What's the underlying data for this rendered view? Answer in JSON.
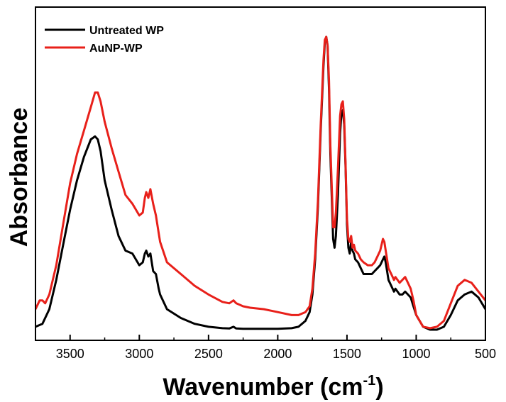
{
  "chart_data": {
    "type": "line",
    "title": "",
    "xlabel": "Wavenumber (cm",
    "xlabel_sup": "-1",
    "xlabel_close": ")",
    "ylabel": "Absorbance",
    "xlim": [
      3750,
      500
    ],
    "x_reversed": true,
    "ylim": [
      0,
      1
    ],
    "y_ticks_shown": false,
    "x_ticks": [
      3500,
      3000,
      2500,
      2000,
      1500,
      1000,
      500
    ],
    "x_tick_labels": [
      "3500",
      "3000",
      "2500",
      "2000",
      "1500",
      "1000",
      "500"
    ],
    "legend_position": "top-left",
    "series": [
      {
        "name": "Untreated WP",
        "color": "#000000",
        "x": [
          3750,
          3700,
          3650,
          3600,
          3550,
          3500,
          3450,
          3400,
          3350,
          3320,
          3300,
          3280,
          3250,
          3200,
          3150,
          3100,
          3050,
          3000,
          2975,
          2960,
          2950,
          2935,
          2920,
          2900,
          2880,
          2860,
          2850,
          2800,
          2700,
          2600,
          2500,
          2400,
          2350,
          2320,
          2300,
          2250,
          2200,
          2100,
          2000,
          1900,
          1850,
          1800,
          1770,
          1750,
          1730,
          1710,
          1690,
          1670,
          1660,
          1650,
          1640,
          1630,
          1620,
          1600,
          1590,
          1580,
          1565,
          1550,
          1540,
          1530,
          1520,
          1510,
          1500,
          1490,
          1480,
          1470,
          1460,
          1450,
          1440,
          1420,
          1400,
          1380,
          1350,
          1320,
          1300,
          1280,
          1260,
          1240,
          1230,
          1220,
          1200,
          1180,
          1160,
          1150,
          1120,
          1100,
          1080,
          1060,
          1040,
          1020,
          1000,
          950,
          900,
          850,
          800,
          750,
          700,
          650,
          600,
          550,
          500
        ],
        "y": [
          0.01,
          0.02,
          0.07,
          0.17,
          0.29,
          0.41,
          0.51,
          0.59,
          0.65,
          0.66,
          0.65,
          0.61,
          0.51,
          0.41,
          0.32,
          0.27,
          0.26,
          0.22,
          0.23,
          0.26,
          0.27,
          0.25,
          0.26,
          0.2,
          0.19,
          0.14,
          0.12,
          0.07,
          0.04,
          0.02,
          0.01,
          0.005,
          0.004,
          0.01,
          0.004,
          0.003,
          0.003,
          0.003,
          0.003,
          0.005,
          0.01,
          0.03,
          0.06,
          0.12,
          0.24,
          0.42,
          0.68,
          0.9,
          0.98,
          1.0,
          0.97,
          0.82,
          0.6,
          0.31,
          0.28,
          0.32,
          0.46,
          0.67,
          0.74,
          0.75,
          0.7,
          0.55,
          0.36,
          0.28,
          0.26,
          0.3,
          0.27,
          0.26,
          0.24,
          0.23,
          0.21,
          0.19,
          0.19,
          0.19,
          0.2,
          0.21,
          0.22,
          0.24,
          0.25,
          0.23,
          0.17,
          0.15,
          0.13,
          0.14,
          0.12,
          0.12,
          0.13,
          0.12,
          0.11,
          0.08,
          0.05,
          0.01,
          0.0,
          0.0,
          0.01,
          0.05,
          0.1,
          0.12,
          0.13,
          0.11,
          0.07
        ]
      },
      {
        "name": "AuNP-WP",
        "color": "#e8201a",
        "x": [
          3750,
          3720,
          3700,
          3680,
          3650,
          3600,
          3550,
          3500,
          3450,
          3400,
          3350,
          3320,
          3300,
          3280,
          3250,
          3200,
          3150,
          3100,
          3050,
          3000,
          2975,
          2960,
          2950,
          2935,
          2920,
          2900,
          2880,
          2860,
          2850,
          2800,
          2700,
          2600,
          2500,
          2400,
          2350,
          2320,
          2300,
          2250,
          2200,
          2100,
          2000,
          1900,
          1850,
          1800,
          1770,
          1750,
          1730,
          1710,
          1690,
          1670,
          1660,
          1650,
          1640,
          1630,
          1620,
          1600,
          1590,
          1580,
          1565,
          1550,
          1540,
          1530,
          1520,
          1510,
          1500,
          1490,
          1480,
          1470,
          1460,
          1450,
          1440,
          1420,
          1400,
          1380,
          1350,
          1320,
          1300,
          1280,
          1260,
          1240,
          1230,
          1220,
          1200,
          1180,
          1160,
          1150,
          1120,
          1100,
          1080,
          1060,
          1040,
          1020,
          1000,
          950,
          900,
          850,
          800,
          750,
          700,
          650,
          600,
          550,
          500
        ],
        "y": [
          0.07,
          0.1,
          0.1,
          0.09,
          0.12,
          0.22,
          0.36,
          0.5,
          0.6,
          0.68,
          0.76,
          0.81,
          0.81,
          0.78,
          0.71,
          0.62,
          0.54,
          0.46,
          0.43,
          0.39,
          0.4,
          0.45,
          0.47,
          0.45,
          0.48,
          0.43,
          0.39,
          0.33,
          0.3,
          0.23,
          0.19,
          0.15,
          0.12,
          0.095,
          0.09,
          0.1,
          0.09,
          0.08,
          0.075,
          0.07,
          0.06,
          0.05,
          0.05,
          0.06,
          0.08,
          0.14,
          0.26,
          0.44,
          0.7,
          0.92,
          0.99,
          1.0,
          0.97,
          0.85,
          0.63,
          0.35,
          0.35,
          0.4,
          0.55,
          0.73,
          0.77,
          0.78,
          0.72,
          0.56,
          0.38,
          0.31,
          0.3,
          0.32,
          0.28,
          0.29,
          0.27,
          0.26,
          0.24,
          0.23,
          0.22,
          0.22,
          0.23,
          0.25,
          0.27,
          0.31,
          0.3,
          0.27,
          0.21,
          0.19,
          0.17,
          0.18,
          0.16,
          0.17,
          0.18,
          0.16,
          0.14,
          0.1,
          0.05,
          0.01,
          0.005,
          0.01,
          0.03,
          0.09,
          0.15,
          0.17,
          0.16,
          0.13,
          0.1
        ]
      }
    ]
  }
}
